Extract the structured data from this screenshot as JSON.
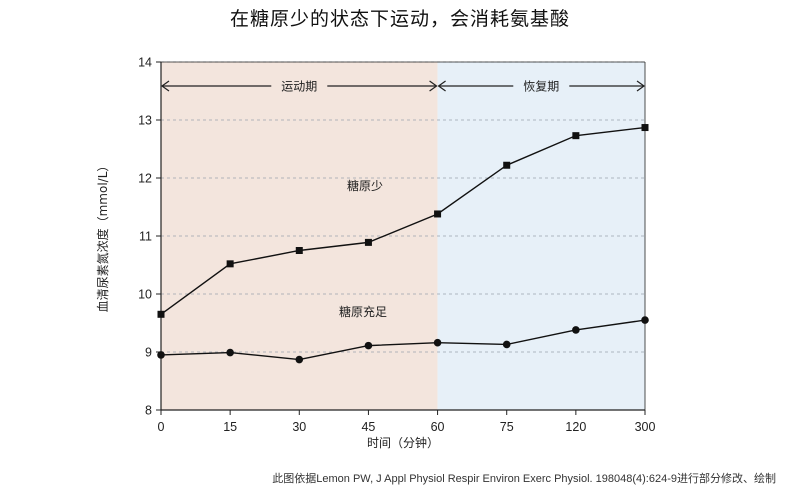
{
  "chart_data": {
    "type": "line",
    "title": "在糖原少的状态下运动，会消耗氨基酸",
    "xlabel": "时间（分钟）",
    "ylabel": "血清尿素氮浓度（mmol/L）",
    "categories": [
      "0",
      "15",
      "30",
      "45",
      "60",
      "75",
      "120",
      "300"
    ],
    "ylim": [
      8,
      14
    ],
    "yticks": [
      "8",
      "9",
      "10",
      "11",
      "12",
      "13",
      "14"
    ],
    "grid": "horizontal dashed",
    "series": [
      {
        "name": "糖原少",
        "marker": "square",
        "values": [
          9.65,
          10.52,
          10.75,
          10.89,
          11.38,
          12.22,
          12.73,
          12.87
        ]
      },
      {
        "name": "糖原充足",
        "marker": "circle",
        "values": [
          8.95,
          8.99,
          8.87,
          9.11,
          9.16,
          9.13,
          9.38,
          9.55
        ]
      }
    ],
    "phases": [
      {
        "label": "运动期",
        "from": "0",
        "to": "60",
        "color": "#f3e5dd"
      },
      {
        "label": "恢复期",
        "from": "60",
        "to": "300",
        "color": "#e7f0f8"
      }
    ]
  },
  "citation": "此图依据Lemon PW, J Appl Physiol Respir Environ Exerc Physiol. 198048(4):624-9进行部分修改、绘制"
}
